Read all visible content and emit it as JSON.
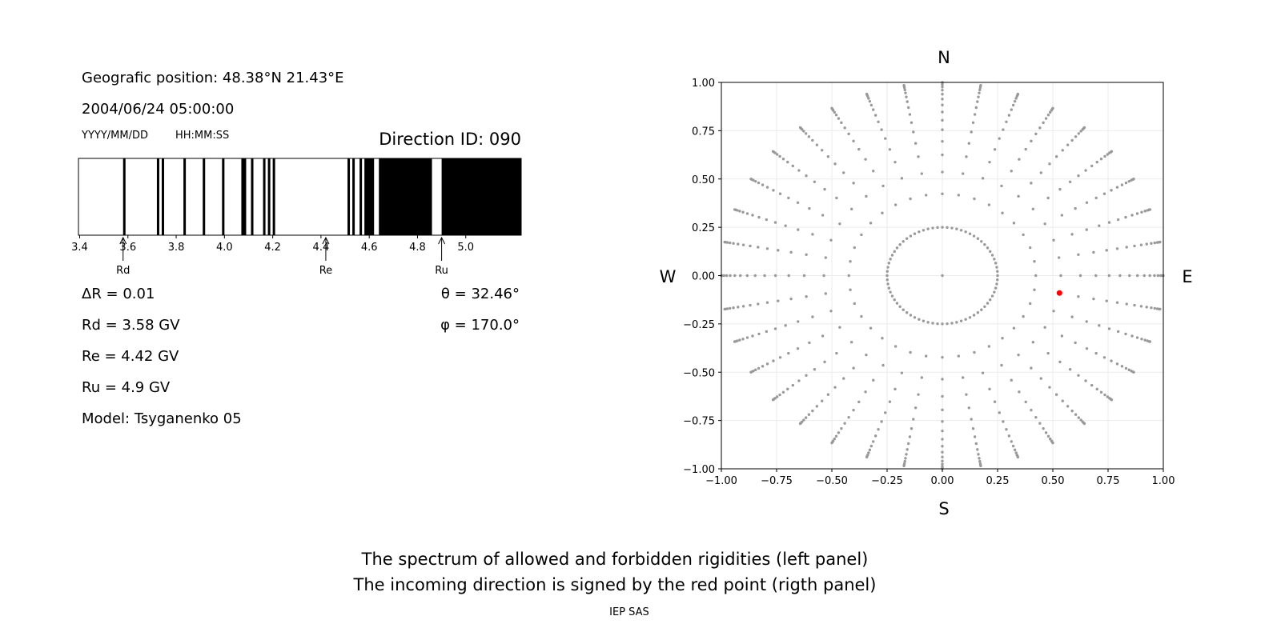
{
  "header": {
    "position": "Geografic position: 48.38°N 21.43°E",
    "datetime": "2004/06/24 05:00:00",
    "date_format": "YYYY/MM/DD",
    "time_format": "HH:MM:SS",
    "direction_id": "Direction ID: 090"
  },
  "results": {
    "delta_r": "ΔR = 0.01",
    "rd": "Rd = 3.58 GV",
    "re": "Re = 4.42 GV",
    "ru": "Ru = 4.9 GV",
    "model": "Model: Tsyganenko 05",
    "theta": "θ = 32.46°",
    "phi": "φ = 170.0°"
  },
  "caption": {
    "line1": "The spectrum of allowed and forbidden rigidities (left panel)",
    "line2": "The incoming direction is signed by the red point (rigth panel)",
    "credit": "IEP SAS"
  },
  "chart_data": [
    {
      "type": "spectrum",
      "xlim": [
        3.4,
        5.23
      ],
      "ticks": [
        "3.4",
        "3.6",
        "3.8",
        "4.0",
        "4.2",
        "4.4",
        "4.6",
        "4.8",
        "5.0"
      ],
      "black_bands": [
        [
          3.58,
          3.59
        ],
        [
          3.72,
          3.73
        ],
        [
          3.74,
          3.75
        ],
        [
          3.83,
          3.84
        ],
        [
          3.91,
          3.92
        ],
        [
          3.99,
          4.0
        ],
        [
          4.07,
          4.09
        ],
        [
          4.11,
          4.12
        ],
        [
          4.16,
          4.17
        ],
        [
          4.18,
          4.19
        ],
        [
          4.2,
          4.21
        ],
        [
          4.51,
          4.52
        ],
        [
          4.53,
          4.54
        ],
        [
          4.56,
          4.57
        ],
        [
          4.58,
          4.62
        ],
        [
          4.64,
          4.86
        ],
        [
          4.9,
          5.23
        ]
      ],
      "markers": [
        {
          "label": "Rd",
          "value": 3.58
        },
        {
          "label": "Re",
          "value": 4.42
        },
        {
          "label": "Ru",
          "value": 4.9
        }
      ],
      "colors": {
        "band": "#000000"
      }
    },
    {
      "type": "scatter",
      "xlim": [
        -1,
        1
      ],
      "ylim": [
        -1,
        1
      ],
      "grid": true,
      "ticks": [
        "−1.00",
        "−0.75",
        "−0.50",
        "−0.25",
        "0.00",
        "0.25",
        "0.50",
        "0.75",
        "1.00"
      ],
      "compass": {
        "north": "N",
        "south": "S",
        "west": "W",
        "east": "E"
      },
      "grid_directions": {
        "azimuth_step_deg": 10,
        "ring_radius": 0.25,
        "spoke_radii": [
          0.423,
          0.536,
          0.625,
          0.695,
          0.755,
          0.804,
          0.847,
          0.883,
          0.914,
          0.939,
          0.96,
          0.976,
          0.988,
          0.996,
          1.0
        ],
        "center": [
          0,
          0
        ]
      },
      "highlight_point": {
        "x": 0.53,
        "y": -0.09
      },
      "colors": {
        "grid_points": "#999999",
        "highlight": "#ff0000"
      }
    }
  ]
}
